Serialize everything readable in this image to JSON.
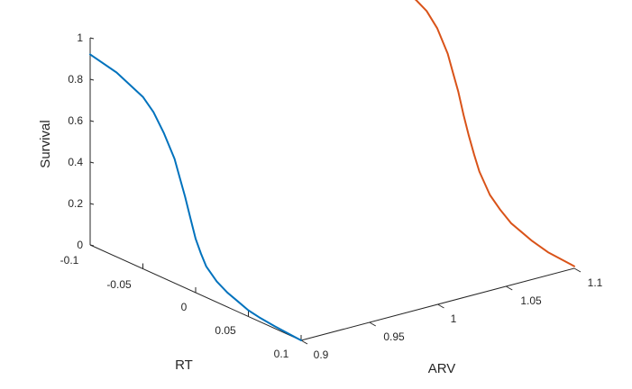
{
  "chart_data": {
    "type": "line",
    "projection": "3d",
    "title": "",
    "xlabel": "RT",
    "ylabel": "ARV",
    "zlabel": "Survival",
    "xlim": [
      -0.1,
      0.1
    ],
    "ylim": [
      0.9,
      1.1
    ],
    "zlim": [
      0,
      1
    ],
    "grid": false,
    "x_ticks": [
      "-0.1",
      "-0.05",
      "0",
      "0.05",
      "0.1"
    ],
    "y_ticks": [
      "0.9",
      "0.95",
      "1",
      "1.05",
      "1.1"
    ],
    "z_ticks": [
      "0",
      "0.2",
      "0.4",
      "0.6",
      "0.8",
      "1"
    ],
    "series": [
      {
        "color": "#0072bd",
        "arv": 0.9,
        "rt": [
          -0.1,
          -0.075,
          -0.05,
          -0.04,
          -0.03,
          -0.02,
          -0.015,
          -0.01,
          -0.005,
          0,
          0.005,
          0.01,
          0.02,
          0.03,
          0.04,
          0.05,
          0.06,
          0.075,
          0.1
        ],
        "survival": [
          0.92,
          0.89,
          0.83,
          0.78,
          0.7,
          0.6,
          0.52,
          0.44,
          0.35,
          0.26,
          0.2,
          0.15,
          0.1,
          0.07,
          0.05,
          0.03,
          0.02,
          0.01,
          0.0
        ]
      },
      {
        "color": "#d95319",
        "arv": 1.1,
        "rt": [
          -0.1,
          -0.075,
          -0.05,
          -0.04,
          -0.03,
          -0.02,
          -0.015,
          -0.01,
          -0.005,
          0,
          0.005,
          0.01,
          0.02,
          0.03,
          0.04,
          0.05,
          0.06,
          0.075,
          0.1
        ],
        "survival": [
          1.0,
          0.98,
          0.95,
          0.92,
          0.86,
          0.76,
          0.68,
          0.6,
          0.5,
          0.41,
          0.33,
          0.26,
          0.17,
          0.12,
          0.08,
          0.06,
          0.04,
          0.02,
          0.01
        ]
      }
    ]
  }
}
